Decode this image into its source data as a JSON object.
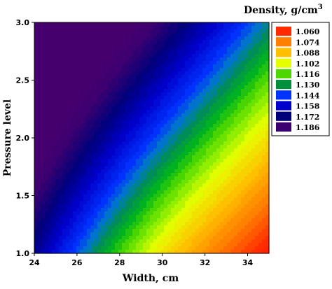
{
  "chart_data": {
    "type": "heatmap",
    "subtype": "filled-contour",
    "title": "",
    "xlabel": "Width, cm",
    "ylabel": "Pressure level",
    "xlim": [
      24,
      35
    ],
    "ylim": [
      1.0,
      3.0
    ],
    "x_ticks": [
      "24",
      "26",
      "28",
      "30",
      "32",
      "34"
    ],
    "y_ticks": [
      "1.0",
      "1.5",
      "2.0",
      "2.5",
      "3.0"
    ],
    "legend": {
      "title_main": "Density, g/cm",
      "title_sup": "3",
      "placement": "top-right",
      "levels": [
        {
          "label": "1.060",
          "value": 1.06,
          "color": "#ff2a00"
        },
        {
          "label": "1.074",
          "value": 1.074,
          "color": "#ff7f00"
        },
        {
          "label": "1.088",
          "value": 1.088,
          "color": "#ffbf00"
        },
        {
          "label": "1.102",
          "value": 1.102,
          "color": "#e6ff00"
        },
        {
          "label": "1.116",
          "value": 1.116,
          "color": "#4dd700"
        },
        {
          "label": "1.130",
          "value": 1.13,
          "color": "#008f3a"
        },
        {
          "label": "1.144",
          "value": 1.144,
          "color": "#0033ff"
        },
        {
          "label": "1.158",
          "value": 1.158,
          "color": "#0000cc"
        },
        {
          "label": "1.172",
          "value": 1.172,
          "color": "#00007a"
        },
        {
          "label": "1.186",
          "value": 1.186,
          "color": "#3d0070"
        }
      ]
    },
    "surface_samples": [
      {
        "x": 24,
        "y": 1.0,
        "density": 1.15
      },
      {
        "x": 24,
        "y": 3.0,
        "density": 1.186
      },
      {
        "x": 30,
        "y": 1.0,
        "density": 1.1
      },
      {
        "x": 30,
        "y": 3.0,
        "density": 1.15
      },
      {
        "x": 35,
        "y": 1.0,
        "density": 1.06
      },
      {
        "x": 35,
        "y": 3.0,
        "density": 1.1
      }
    ]
  }
}
